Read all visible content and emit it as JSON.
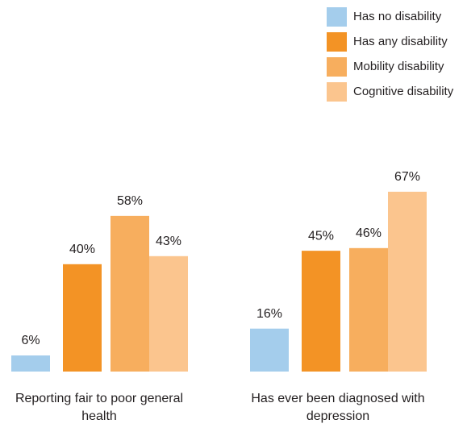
{
  "chart_data": {
    "type": "bar",
    "categories": [
      "Reporting fair to poor general health",
      "Has ever been diagnosed with depression"
    ],
    "series": [
      {
        "name": "Has no disability",
        "color": "#a4cdec",
        "values": [
          6,
          16
        ],
        "value_labels": [
          "6%",
          "16%"
        ]
      },
      {
        "name": "Has any disability",
        "color": "#f39325",
        "values": [
          40,
          45
        ],
        "value_labels": [
          "40%",
          "45%"
        ]
      },
      {
        "name": "Mobility disability",
        "color": "#f7ae5e",
        "values": [
          58,
          46
        ],
        "value_labels": [
          "58%",
          "46%"
        ]
      },
      {
        "name": "Cognitive disability",
        "color": "#fbc58e",
        "values": [
          43,
          67
        ],
        "value_labels": [
          "43%",
          "67%"
        ]
      }
    ],
    "legend": "upper right"
  }
}
